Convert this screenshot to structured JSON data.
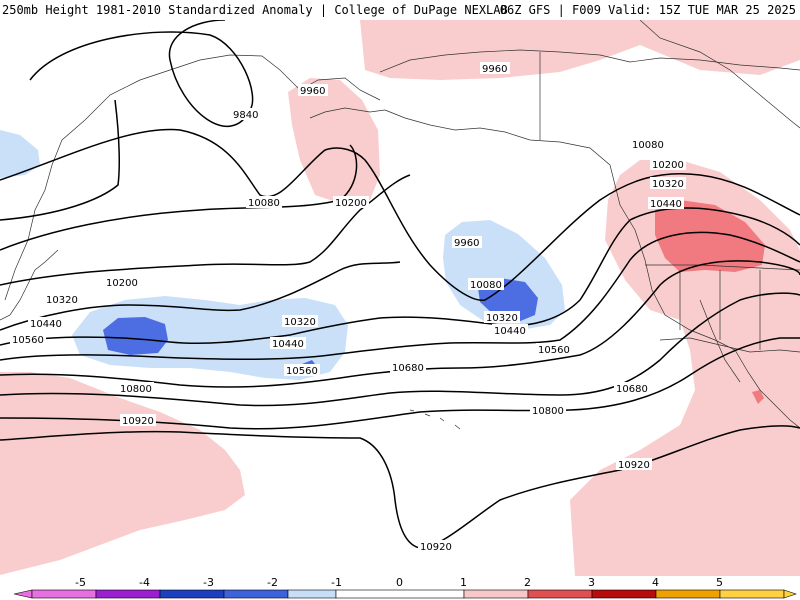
{
  "header": {
    "left_text": "250mb Height 1981-2010 Standardized Anomaly | College of DuPage NEXLAB",
    "right_text": "06Z GFS | F009 Valid: 15Z TUE MAR 25 2025"
  },
  "contour_labels": [
    "9840",
    "9960",
    "9960",
    "10080",
    "10080",
    "10080",
    "10200",
    "10200",
    "10200",
    "10320",
    "10320",
    "10320",
    "10320",
    "10440",
    "10440",
    "10440",
    "10440",
    "10560",
    "10560",
    "10560",
    "10680",
    "10680",
    "10800",
    "10800",
    "10920",
    "10920",
    "10920",
    "9960"
  ],
  "colorbar": {
    "ticks": [
      "-5",
      "-4",
      "-3",
      "-2",
      "-1",
      "0",
      "1",
      "2",
      "3",
      "4",
      "5"
    ],
    "colors": [
      "#e76fe0",
      "#9b1fd0",
      "#1c3fc0",
      "#3c63dc",
      "#c7def8",
      "#ffffff",
      "#ffffff",
      "#f8c8c8",
      "#e05050",
      "#b80c0c",
      "#f0a000",
      "#ffd040"
    ]
  },
  "palette": {
    "neg1": "#c9e0f8",
    "neg2": "#4d6ee3",
    "pos1": "#f9cdcd",
    "pos2": "#f07a80",
    "contour": "#000000",
    "coast": "#333333"
  }
}
